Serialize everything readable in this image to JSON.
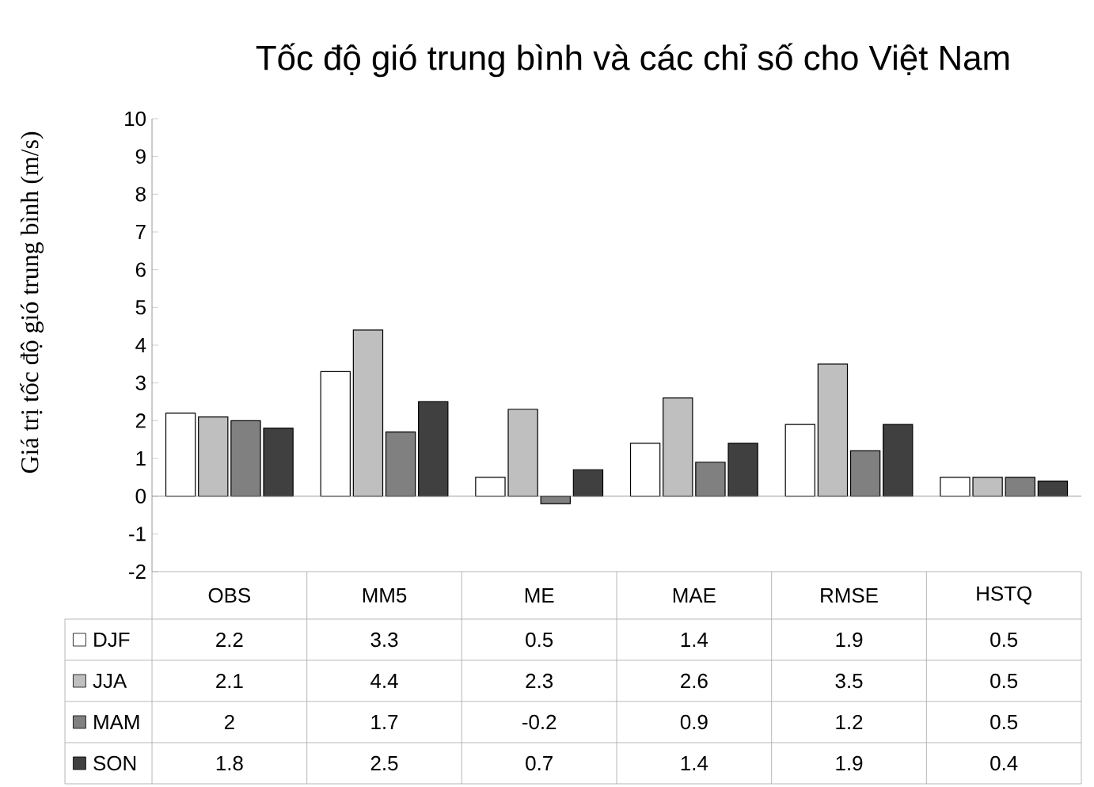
{
  "chart_data": {
    "type": "bar",
    "title": "Tốc độ gió trung bình và các chỉ số cho Việt Nam",
    "ylabel": "Giá trị tốc độ gió trung bình (m/s)",
    "categories": [
      "OBS",
      "MM5",
      "ME",
      "MAE",
      "RMSE",
      "HSTQ"
    ],
    "series": [
      {
        "name": "DJF",
        "color": "#ffffff",
        "values": [
          2.2,
          3.3,
          0.5,
          1.4,
          1.9,
          0.5
        ]
      },
      {
        "name": "JJA",
        "color": "#bfbfbf",
        "values": [
          2.1,
          4.4,
          2.3,
          2.6,
          3.5,
          0.5
        ]
      },
      {
        "name": "MAM",
        "color": "#808080",
        "values": [
          2,
          1.7,
          -0.2,
          0.9,
          1.2,
          0.5
        ]
      },
      {
        "name": "SON",
        "color": "#404040",
        "values": [
          1.8,
          2.5,
          0.7,
          1.4,
          1.9,
          0.4
        ]
      }
    ],
    "ylim": [
      -2,
      10
    ],
    "yticks": [
      -2,
      -1,
      0,
      1,
      2,
      3,
      4,
      5,
      6,
      7,
      8,
      9,
      10
    ],
    "data_labels": true,
    "legend": "bottom"
  }
}
